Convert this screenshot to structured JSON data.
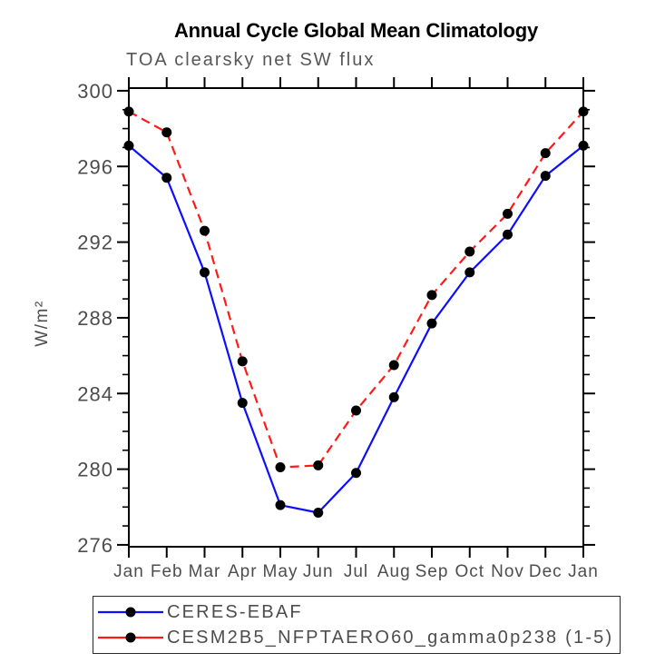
{
  "header": {
    "title": "Annual Cycle Global Mean Climatology",
    "subtitle": "TOA clearsky net SW flux"
  },
  "chart_data": {
    "type": "line",
    "title": "Annual Cycle Global Mean Climatology",
    "subtitle": "TOA clearsky net SW flux",
    "ylabel": "W/m²",
    "xlabel": "",
    "categories": [
      "Jan",
      "Feb",
      "Mar",
      "Apr",
      "May",
      "Jun",
      "Jul",
      "Aug",
      "Sep",
      "Oct",
      "Nov",
      "Dec",
      "Jan"
    ],
    "series": [
      {
        "name": "CERES-EBAF",
        "color": "#0d0dff",
        "line_style": "solid",
        "marker": "filled-circle",
        "marker_color": "#000000",
        "values": [
          297.1,
          295.4,
          290.4,
          283.5,
          278.1,
          277.7,
          279.8,
          283.8,
          287.7,
          290.4,
          292.4,
          295.5,
          297.1
        ]
      },
      {
        "name": "CESM2B5_NFPTAERO60_gamma0p238 (1-5)",
        "color": "#ff1a1a",
        "line_style": "dashed",
        "marker": "filled-circle",
        "marker_color": "#000000",
        "values": [
          298.9,
          297.8,
          292.6,
          285.7,
          280.1,
          280.2,
          283.1,
          285.5,
          289.2,
          291.5,
          293.5,
          296.7,
          298.9
        ]
      }
    ],
    "ylim": [
      275.9,
      300.14
    ],
    "yticks_major": [
      276,
      280,
      284,
      288,
      292,
      296,
      300
    ],
    "ytick_minor_step": 1,
    "grid": false,
    "legend_position": "bottom",
    "frame_color": "#000000",
    "label_color": "#4d4d4d"
  }
}
